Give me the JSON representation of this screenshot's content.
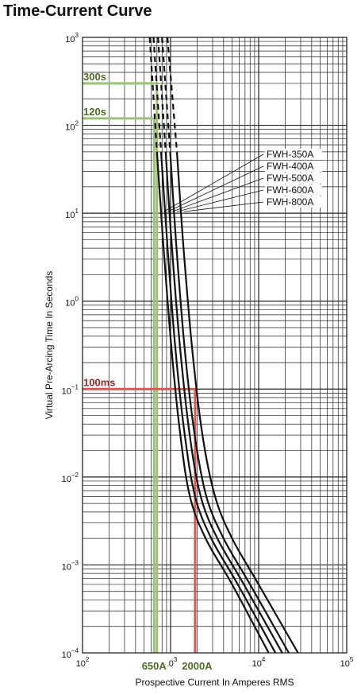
{
  "title": "Time-Current Curve",
  "chart_data": {
    "type": "line",
    "x_scale": "log",
    "y_scale": "log",
    "xlim": [
      100,
      100000
    ],
    "ylim": [
      0.0001,
      1000
    ],
    "xlabel": "Prospective Current In Amperes RMS",
    "ylabel": "Virtual Pre-Arcing Time In Seconds",
    "grid": true,
    "x_ticks": [
      {
        "value": 100,
        "base": "10",
        "exp": "2"
      },
      {
        "value": 1000,
        "base": "10",
        "exp": "3"
      },
      {
        "value": 10000,
        "base": "10",
        "exp": "4"
      },
      {
        "value": 100000,
        "base": "10",
        "exp": "5"
      }
    ],
    "y_ticks": [
      {
        "value": 1000,
        "base": "10",
        "exp": "3"
      },
      {
        "value": 100,
        "base": "10",
        "exp": "2"
      },
      {
        "value": 10,
        "base": "10",
        "exp": "1"
      },
      {
        "value": 1,
        "base": "10",
        "exp": "0"
      },
      {
        "value": 0.1,
        "base": "10",
        "exp": "−1"
      },
      {
        "value": 0.01,
        "base": "10",
        "exp": "−2"
      },
      {
        "value": 0.001,
        "base": "10",
        "exp": "−3"
      },
      {
        "value": 0.0001,
        "base": "10",
        "exp": "−4"
      }
    ],
    "legend": [
      "FWH-350A",
      "FWH-400A",
      "FWH-500A",
      "FWH-600A",
      "FWH-800A"
    ],
    "series": [
      {
        "name": "FWH-350A",
        "dashed": [
          [
            580,
            1000
          ],
          [
            700,
            50
          ]
        ],
        "solid": [
          [
            700,
            50
          ],
          [
            820,
            5
          ],
          [
            1020,
            0.3
          ],
          [
            1290,
            0.03
          ],
          [
            1660,
            0.006
          ],
          [
            2500,
            0.002
          ],
          [
            5000,
            0.0006
          ],
          [
            13000,
            0.0001
          ]
        ]
      },
      {
        "name": "FWH-400A",
        "dashed": [
          [
            640,
            1000
          ],
          [
            780,
            50
          ]
        ],
        "solid": [
          [
            780,
            50
          ],
          [
            910,
            5
          ],
          [
            1130,
            0.3
          ],
          [
            1450,
            0.03
          ],
          [
            1900,
            0.006
          ],
          [
            2900,
            0.002
          ],
          [
            5800,
            0.0006
          ],
          [
            15500,
            0.0001
          ]
        ]
      },
      {
        "name": "FWH-500A",
        "dashed": [
          [
            720,
            1000
          ],
          [
            880,
            50
          ]
        ],
        "solid": [
          [
            880,
            50
          ],
          [
            1020,
            5
          ],
          [
            1280,
            0.3
          ],
          [
            1650,
            0.03
          ],
          [
            2200,
            0.006
          ],
          [
            3400,
            0.002
          ],
          [
            6800,
            0.0006
          ],
          [
            18500,
            0.0001
          ]
        ]
      },
      {
        "name": "FWH-600A",
        "dashed": [
          [
            800,
            1000
          ],
          [
            990,
            50
          ]
        ],
        "solid": [
          [
            990,
            50
          ],
          [
            1150,
            5
          ],
          [
            1440,
            0.3
          ],
          [
            1880,
            0.03
          ],
          [
            2550,
            0.006
          ],
          [
            4000,
            0.002
          ],
          [
            8000,
            0.0006
          ],
          [
            22000,
            0.0001
          ]
        ]
      },
      {
        "name": "FWH-800A",
        "dashed": [
          [
            920,
            1000
          ],
          [
            1180,
            50
          ]
        ],
        "solid": [
          [
            1180,
            50
          ],
          [
            1380,
            5
          ],
          [
            1750,
            0.3
          ],
          [
            2300,
            0.03
          ],
          [
            3200,
            0.006
          ],
          [
            5000,
            0.002
          ],
          [
            10000,
            0.0006
          ],
          [
            28000,
            0.0001
          ]
        ]
      }
    ],
    "annotations": [
      {
        "label": "300s",
        "time": 300,
        "current": 700,
        "color": "#9dc07a",
        "text_color": "#4f6b2a"
      },
      {
        "label": "120s",
        "time": 120,
        "current": 650,
        "color": "#9dc07a",
        "text_color": "#4f6b2a"
      },
      {
        "label": "100ms",
        "time": 0.1,
        "current": 1900,
        "color": "#cd5c5c",
        "text_color": "#8b2a2a"
      }
    ],
    "x_callouts": [
      {
        "label": "650A",
        "value": 650,
        "color": "#4f6b2a"
      },
      {
        "label": "2000A",
        "value": 2000,
        "color": "#4f6b2a"
      }
    ]
  }
}
